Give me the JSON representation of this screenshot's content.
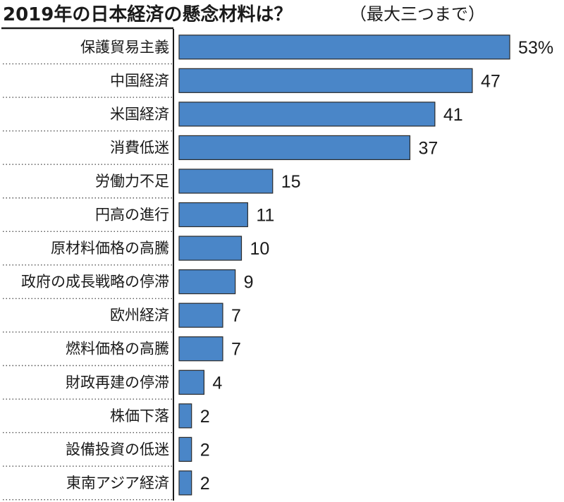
{
  "title": "2019年の日本経済の懸念材料は？",
  "subtitle": "（最大三つまで）",
  "colors": {
    "bar": "#4a86c8",
    "text": "#1a1a1a"
  },
  "chart_data": {
    "type": "bar",
    "orientation": "horizontal",
    "title": "2019年の日本経済の懸念材料は？",
    "subtitle": "（最大三つまで）",
    "unit": "%",
    "categories": [
      "保護貿易主義",
      "中国経済",
      "米国経済",
      "消費低迷",
      "労働力不足",
      "円高の進行",
      "原材料価格の高騰",
      "政府の成長戦略の停滞",
      "欧州経済",
      "燃料価格の高騰",
      "財政再建の停滞",
      "株価下落",
      "設備投資の低迷",
      "東南アジア経済"
    ],
    "values": [
      53,
      47,
      41,
      37,
      15,
      11,
      10,
      9,
      7,
      7,
      4,
      2,
      2,
      2
    ],
    "value_labels": [
      "53%",
      "47",
      "41",
      "37",
      "15",
      "11",
      "10",
      "9",
      "7",
      "7",
      "4",
      "2",
      "2",
      "2"
    ],
    "xlim": [
      0,
      53
    ],
    "grid": false
  }
}
